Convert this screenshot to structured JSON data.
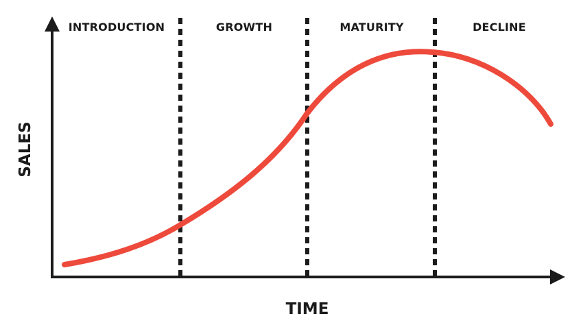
{
  "axes": {
    "x_label": "TIME",
    "y_label": "SALES"
  },
  "stages": [
    {
      "label": "INTRODUCTION"
    },
    {
      "label": "GROWTH"
    },
    {
      "label": "MATURITY"
    },
    {
      "label": "DECLINE"
    }
  ],
  "colors": {
    "curve": "#ee4a3c",
    "axes": "#1b1b1b",
    "background": "#ffffff"
  }
}
